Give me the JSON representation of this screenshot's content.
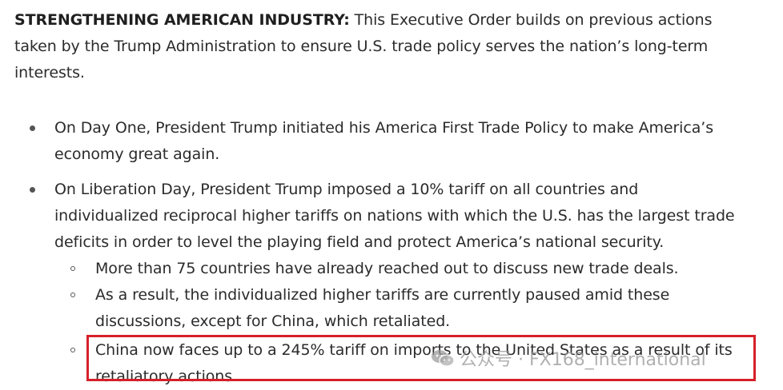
{
  "intro": {
    "lead": "STRENGTHENING AMERICAN INDUSTRY:",
    "text": " This Executive Order builds on previous actions taken by the Trump Administration to ensure U.S. trade policy serves the nation’s long-term interests."
  },
  "bullets": [
    "On Day One, President Trump initiated his America First Trade Policy to make America’s economy great again.",
    "On Liberation Day, President Trump imposed a 10% tariff on all countries and individualized reciprocal higher tariffs on nations with which the U.S. has the largest trade deficits in order to level the playing field and protect America’s national security."
  ],
  "subbullets": [
    "More than 75 countries have already reached out to discuss new trade deals.",
    "As a result, the individualized higher tariffs are currently paused amid these discussions, except for China, which retaliated.",
    "China now faces up to a 245% tariff on imports to the United States as a result of its retaliatory actions."
  ],
  "watermark": {
    "text": "公众号 · FX168_international"
  },
  "colors": {
    "highlight_border": "#d6202a",
    "text": "#2b2b2b"
  }
}
